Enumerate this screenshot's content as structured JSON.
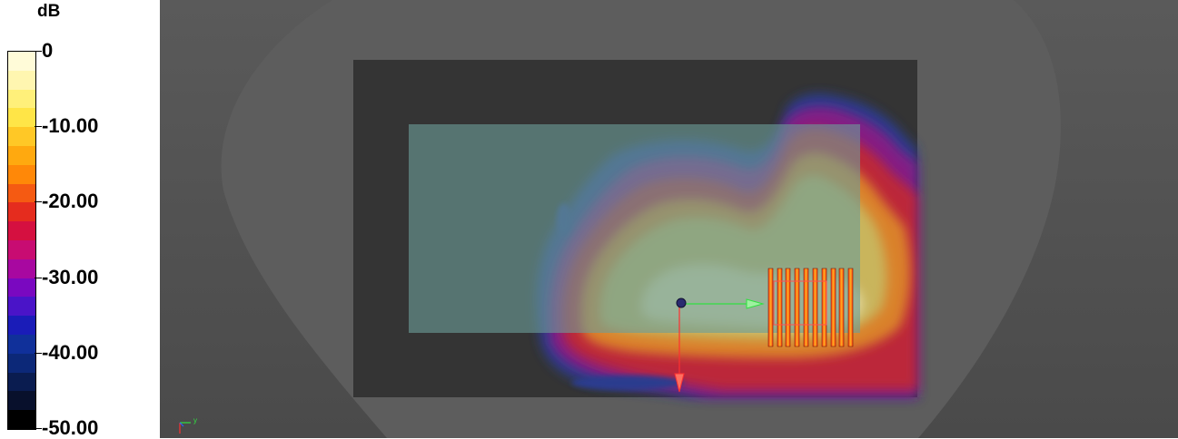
{
  "legend": {
    "unit": "dB",
    "ticks": [
      {
        "label": "0",
        "value": 0
      },
      {
        "label": "-10.00",
        "value": -10
      },
      {
        "label": "-20.00",
        "value": -20
      },
      {
        "label": "-30.00",
        "value": -30
      },
      {
        "label": "-40.00",
        "value": -40
      },
      {
        "label": "-50.00",
        "value": -50
      }
    ],
    "range": [
      -50,
      0
    ],
    "colors": [
      "#fffbd8",
      "#fff6b0",
      "#fff07a",
      "#ffe547",
      "#ffc826",
      "#ffa90f",
      "#ff8808",
      "#f55a12",
      "#e52c1e",
      "#d51040",
      "#c80c72",
      "#a808a0",
      "#7a08c0",
      "#4a14c8",
      "#1a1cb8",
      "#10309a",
      "#0c2878",
      "#0a1c50",
      "#08102c",
      "#000000"
    ]
  },
  "scene": {
    "axis_triad": {
      "y_label": "y"
    },
    "colors": {
      "background": "#4e4e4e",
      "room_footprint": "#5d5d5d",
      "floor": "#343434",
      "panel": "#5e8a86",
      "source_marker": "#2a2a70",
      "axis_x": "#ff3030",
      "axis_y": "#30e040",
      "axis_z": "#3060ff"
    }
  }
}
